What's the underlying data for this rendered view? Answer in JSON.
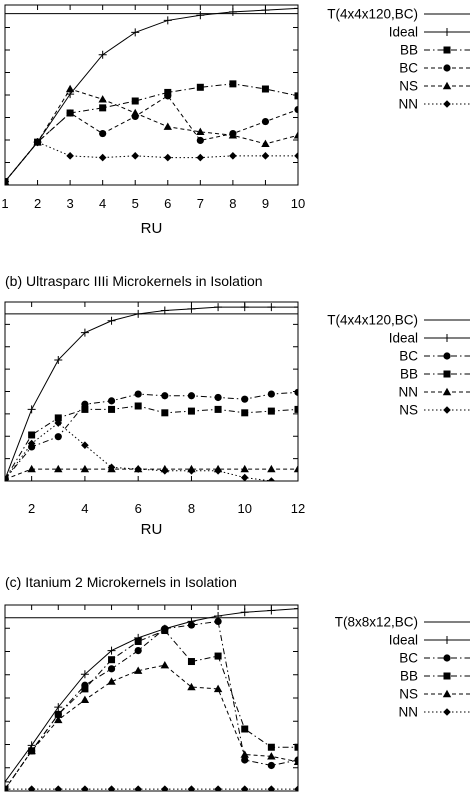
{
  "chart_data": [
    {
      "type": "line",
      "title": "",
      "xlabel": "RU",
      "ylabel": "",
      "xlim": [
        1,
        10
      ],
      "ylim": [
        0,
        1.05
      ],
      "xticks": [
        1,
        2,
        3,
        4,
        5,
        6,
        7,
        8,
        9,
        10
      ],
      "series": [
        {
          "name": "T(4x4x120,BC)",
          "style": "solid",
          "marker": "none",
          "x": [
            1,
            10
          ],
          "y": [
            1.0,
            1.0
          ]
        },
        {
          "name": "Ideal",
          "style": "solid",
          "marker": "plus",
          "x": [
            1,
            2,
            3,
            4,
            5,
            6,
            7,
            8,
            9,
            10
          ],
          "y": [
            0.02,
            0.25,
            0.53,
            0.76,
            0.89,
            0.96,
            0.99,
            1.01,
            1.02,
            1.03
          ]
        },
        {
          "name": "BB",
          "style": "dashdot",
          "marker": "square",
          "x": [
            1,
            2,
            3,
            4,
            5,
            6,
            7,
            8,
            9,
            10
          ],
          "y": [
            0.02,
            0.25,
            0.42,
            0.45,
            0.49,
            0.54,
            0.57,
            0.59,
            0.56,
            0.52
          ]
        },
        {
          "name": "BC",
          "style": "dashed",
          "marker": "circle",
          "x": [
            1,
            2,
            3,
            4,
            5,
            6,
            7,
            8,
            9,
            10
          ],
          "y": [
            0.02,
            0.25,
            0.42,
            0.3,
            0.4,
            0.52,
            0.26,
            0.3,
            0.37,
            0.44
          ]
        },
        {
          "name": "NS",
          "style": "dashed",
          "marker": "triangle",
          "x": [
            1,
            2,
            3,
            4,
            5,
            6,
            7,
            8,
            9,
            10
          ],
          "y": [
            0.02,
            0.25,
            0.56,
            0.5,
            0.42,
            0.34,
            0.31,
            0.29,
            0.24,
            0.29
          ]
        },
        {
          "name": "NN",
          "style": "dotted",
          "marker": "diamond",
          "x": [
            1,
            2,
            3,
            4,
            5,
            6,
            7,
            8,
            9,
            10
          ],
          "y": [
            0.02,
            0.25,
            0.17,
            0.16,
            0.17,
            0.16,
            0.16,
            0.17,
            0.17,
            0.17
          ]
        }
      ]
    },
    {
      "type": "line",
      "title": "(b) Ultrasparc IIIi Microkernels in Isolation",
      "xlabel": "RU",
      "ylabel": "",
      "xlim": [
        1,
        12
      ],
      "ylim": [
        0,
        1.05
      ],
      "xticks": [
        2,
        4,
        6,
        8,
        10,
        12
      ],
      "series": [
        {
          "name": "T(4x4x120,BC)",
          "style": "solid",
          "marker": "none",
          "x": [
            1,
            12
          ],
          "y": [
            0.98,
            0.98
          ]
        },
        {
          "name": "Ideal",
          "style": "solid",
          "marker": "plus",
          "x": [
            1,
            2,
            3,
            4,
            5,
            6,
            7,
            8,
            9,
            10,
            11,
            12
          ],
          "y": [
            0.01,
            0.42,
            0.71,
            0.87,
            0.94,
            0.98,
            1.0,
            1.01,
            1.02,
            1.02,
            1.02,
            1.02
          ]
        },
        {
          "name": "BC",
          "style": "dashdot",
          "marker": "circle",
          "x": [
            1,
            2,
            3,
            4,
            5,
            6,
            7,
            8,
            9,
            10,
            11,
            12
          ],
          "y": [
            0.01,
            0.2,
            0.26,
            0.45,
            0.47,
            0.51,
            0.5,
            0.5,
            0.49,
            0.48,
            0.51,
            0.52
          ]
        },
        {
          "name": "BB",
          "style": "dashdot",
          "marker": "square",
          "x": [
            1,
            2,
            3,
            4,
            5,
            6,
            7,
            8,
            9,
            10,
            11,
            12
          ],
          "y": [
            0.01,
            0.27,
            0.37,
            0.42,
            0.42,
            0.44,
            0.4,
            0.41,
            0.42,
            0.4,
            0.41,
            0.42
          ]
        },
        {
          "name": "NN",
          "style": "dashed",
          "marker": "triangle",
          "x": [
            1,
            2,
            3,
            4,
            5,
            6,
            7,
            8,
            9,
            10,
            11,
            12
          ],
          "y": [
            0.01,
            0.07,
            0.07,
            0.07,
            0.07,
            0.07,
            0.07,
            0.07,
            0.07,
            0.07,
            0.07,
            0.07
          ]
        },
        {
          "name": "NS",
          "style": "dotted",
          "marker": "diamond",
          "x": [
            1,
            2,
            3,
            4,
            5,
            6,
            7,
            8,
            9,
            10,
            11,
            12
          ],
          "y": [
            0.01,
            0.22,
            0.34,
            0.21,
            0.08,
            0.07,
            0.06,
            0.06,
            0.06,
            0.02,
            0.0,
            -0.02
          ]
        }
      ]
    },
    {
      "type": "line",
      "title": "(c) Itanium 2 Microkernels in Isolation",
      "xlabel": "",
      "ylabel": "",
      "xlim": [
        1,
        12
      ],
      "ylim": [
        0,
        1.02
      ],
      "xticks": [],
      "series": [
        {
          "name": "T(8x8x12,BC)",
          "style": "solid",
          "marker": "none",
          "x": [
            1,
            12
          ],
          "y": [
            0.95,
            0.95
          ]
        },
        {
          "name": "Ideal",
          "style": "solid",
          "marker": "plus",
          "x": [
            1,
            2,
            3,
            4,
            5,
            6,
            7,
            8,
            9,
            10,
            11,
            12
          ],
          "y": [
            0.05,
            0.25,
            0.46,
            0.64,
            0.77,
            0.84,
            0.89,
            0.93,
            0.96,
            0.98,
            0.99,
            1.0
          ]
        },
        {
          "name": "BC",
          "style": "dashdot",
          "marker": "circle",
          "x": [
            1,
            2,
            3,
            4,
            5,
            6,
            7,
            8,
            9,
            10,
            11,
            12
          ],
          "y": [
            0.01,
            0.22,
            0.42,
            0.58,
            0.67,
            0.77,
            0.89,
            0.91,
            0.93,
            0.17,
            0.14,
            0.17
          ]
        },
        {
          "name": "BB",
          "style": "dashdot",
          "marker": "square",
          "x": [
            1,
            2,
            3,
            4,
            5,
            6,
            7,
            8,
            9,
            10,
            11,
            12
          ],
          "y": [
            0.01,
            0.22,
            0.42,
            0.56,
            0.72,
            0.82,
            0.88,
            0.71,
            0.74,
            0.34,
            0.24,
            0.24
          ]
        },
        {
          "name": "NS",
          "style": "dashed",
          "marker": "triangle",
          "x": [
            1,
            2,
            3,
            4,
            5,
            6,
            7,
            8,
            9,
            10,
            11,
            12
          ],
          "y": [
            0.01,
            0.22,
            0.39,
            0.5,
            0.6,
            0.66,
            0.69,
            0.57,
            0.56,
            0.2,
            0.19,
            0.16
          ]
        },
        {
          "name": "NN",
          "style": "dotted",
          "marker": "diamond",
          "x": [
            1,
            2,
            3,
            4,
            5,
            6,
            7,
            8,
            9,
            10,
            11,
            12
          ],
          "y": [
            0.01,
            0.01,
            0.01,
            0.01,
            0.01,
            0.01,
            0.01,
            0.01,
            0.01,
            0.01,
            0.01,
            0.01
          ]
        }
      ]
    }
  ]
}
